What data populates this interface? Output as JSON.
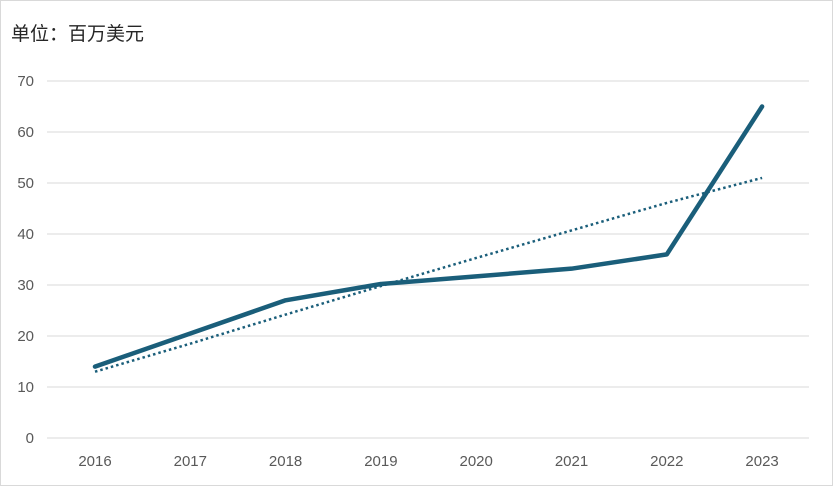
{
  "chart_data": {
    "type": "line",
    "unit_label": "单位：百万美元",
    "categories": [
      "2016",
      "2017",
      "2018",
      "2019",
      "2020",
      "2021",
      "2022",
      "2023"
    ],
    "yticks": [
      "0",
      "10",
      "20",
      "30",
      "40",
      "50",
      "60",
      "70"
    ],
    "ylim": [
      0,
      70
    ],
    "grid": true,
    "series": [
      {
        "values": [
          14,
          20.5,
          27,
          30.2,
          31.7,
          33.2,
          36,
          65
        ],
        "color": "#1a5e7a",
        "style": "solid"
      },
      {
        "values": [
          13,
          18.5,
          24.2,
          29.8,
          35.3,
          40.7,
          46.1,
          51
        ],
        "color": "#1a5e7a",
        "style": "dotted",
        "role": "trendline"
      }
    ]
  }
}
